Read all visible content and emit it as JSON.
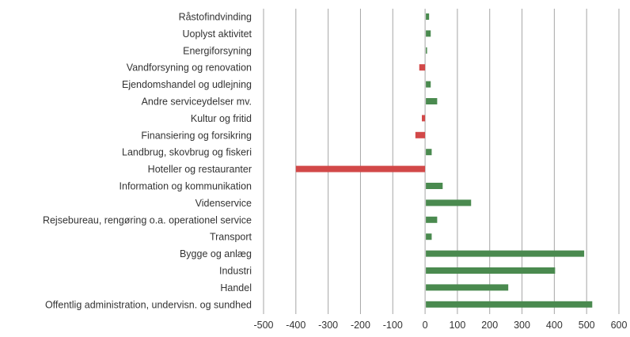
{
  "chart_data": {
    "type": "bar",
    "orientation": "horizontal",
    "title": "",
    "xlabel": "",
    "ylabel": "",
    "xlim": [
      -500,
      600
    ],
    "x_ticks": [
      -500,
      -400,
      -300,
      -200,
      -100,
      0,
      100,
      200,
      300,
      400,
      500,
      600
    ],
    "grid": true,
    "legend": "none",
    "colors": {
      "positive": "#4a8a4f",
      "negative": "#d24848"
    },
    "categories": [
      "Råstofindvinding",
      "Uoplyst aktivitet",
      "Energiforsyning",
      "Vandforsyning og renovation",
      "Ejendomshandel og udlejning",
      "Andre serviceydelser  mv.",
      "Kultur og fritid",
      "Finansiering og forsikring",
      "Landbrug, skovbrug og fiskeri",
      "Hoteller og restauranter",
      "Information og kommunikation",
      "Videnservice",
      "Rejsebureau, rengøring o.a. operationel service",
      "Transport",
      "Bygge og anlæg",
      "Industri",
      "Handel",
      "Offentlig administration, undervisn. og sundhed"
    ],
    "values": [
      10,
      15,
      3,
      -18,
      15,
      35,
      -10,
      -30,
      18,
      -400,
      52,
      140,
      35,
      18,
      490,
      400,
      255,
      515
    ]
  }
}
